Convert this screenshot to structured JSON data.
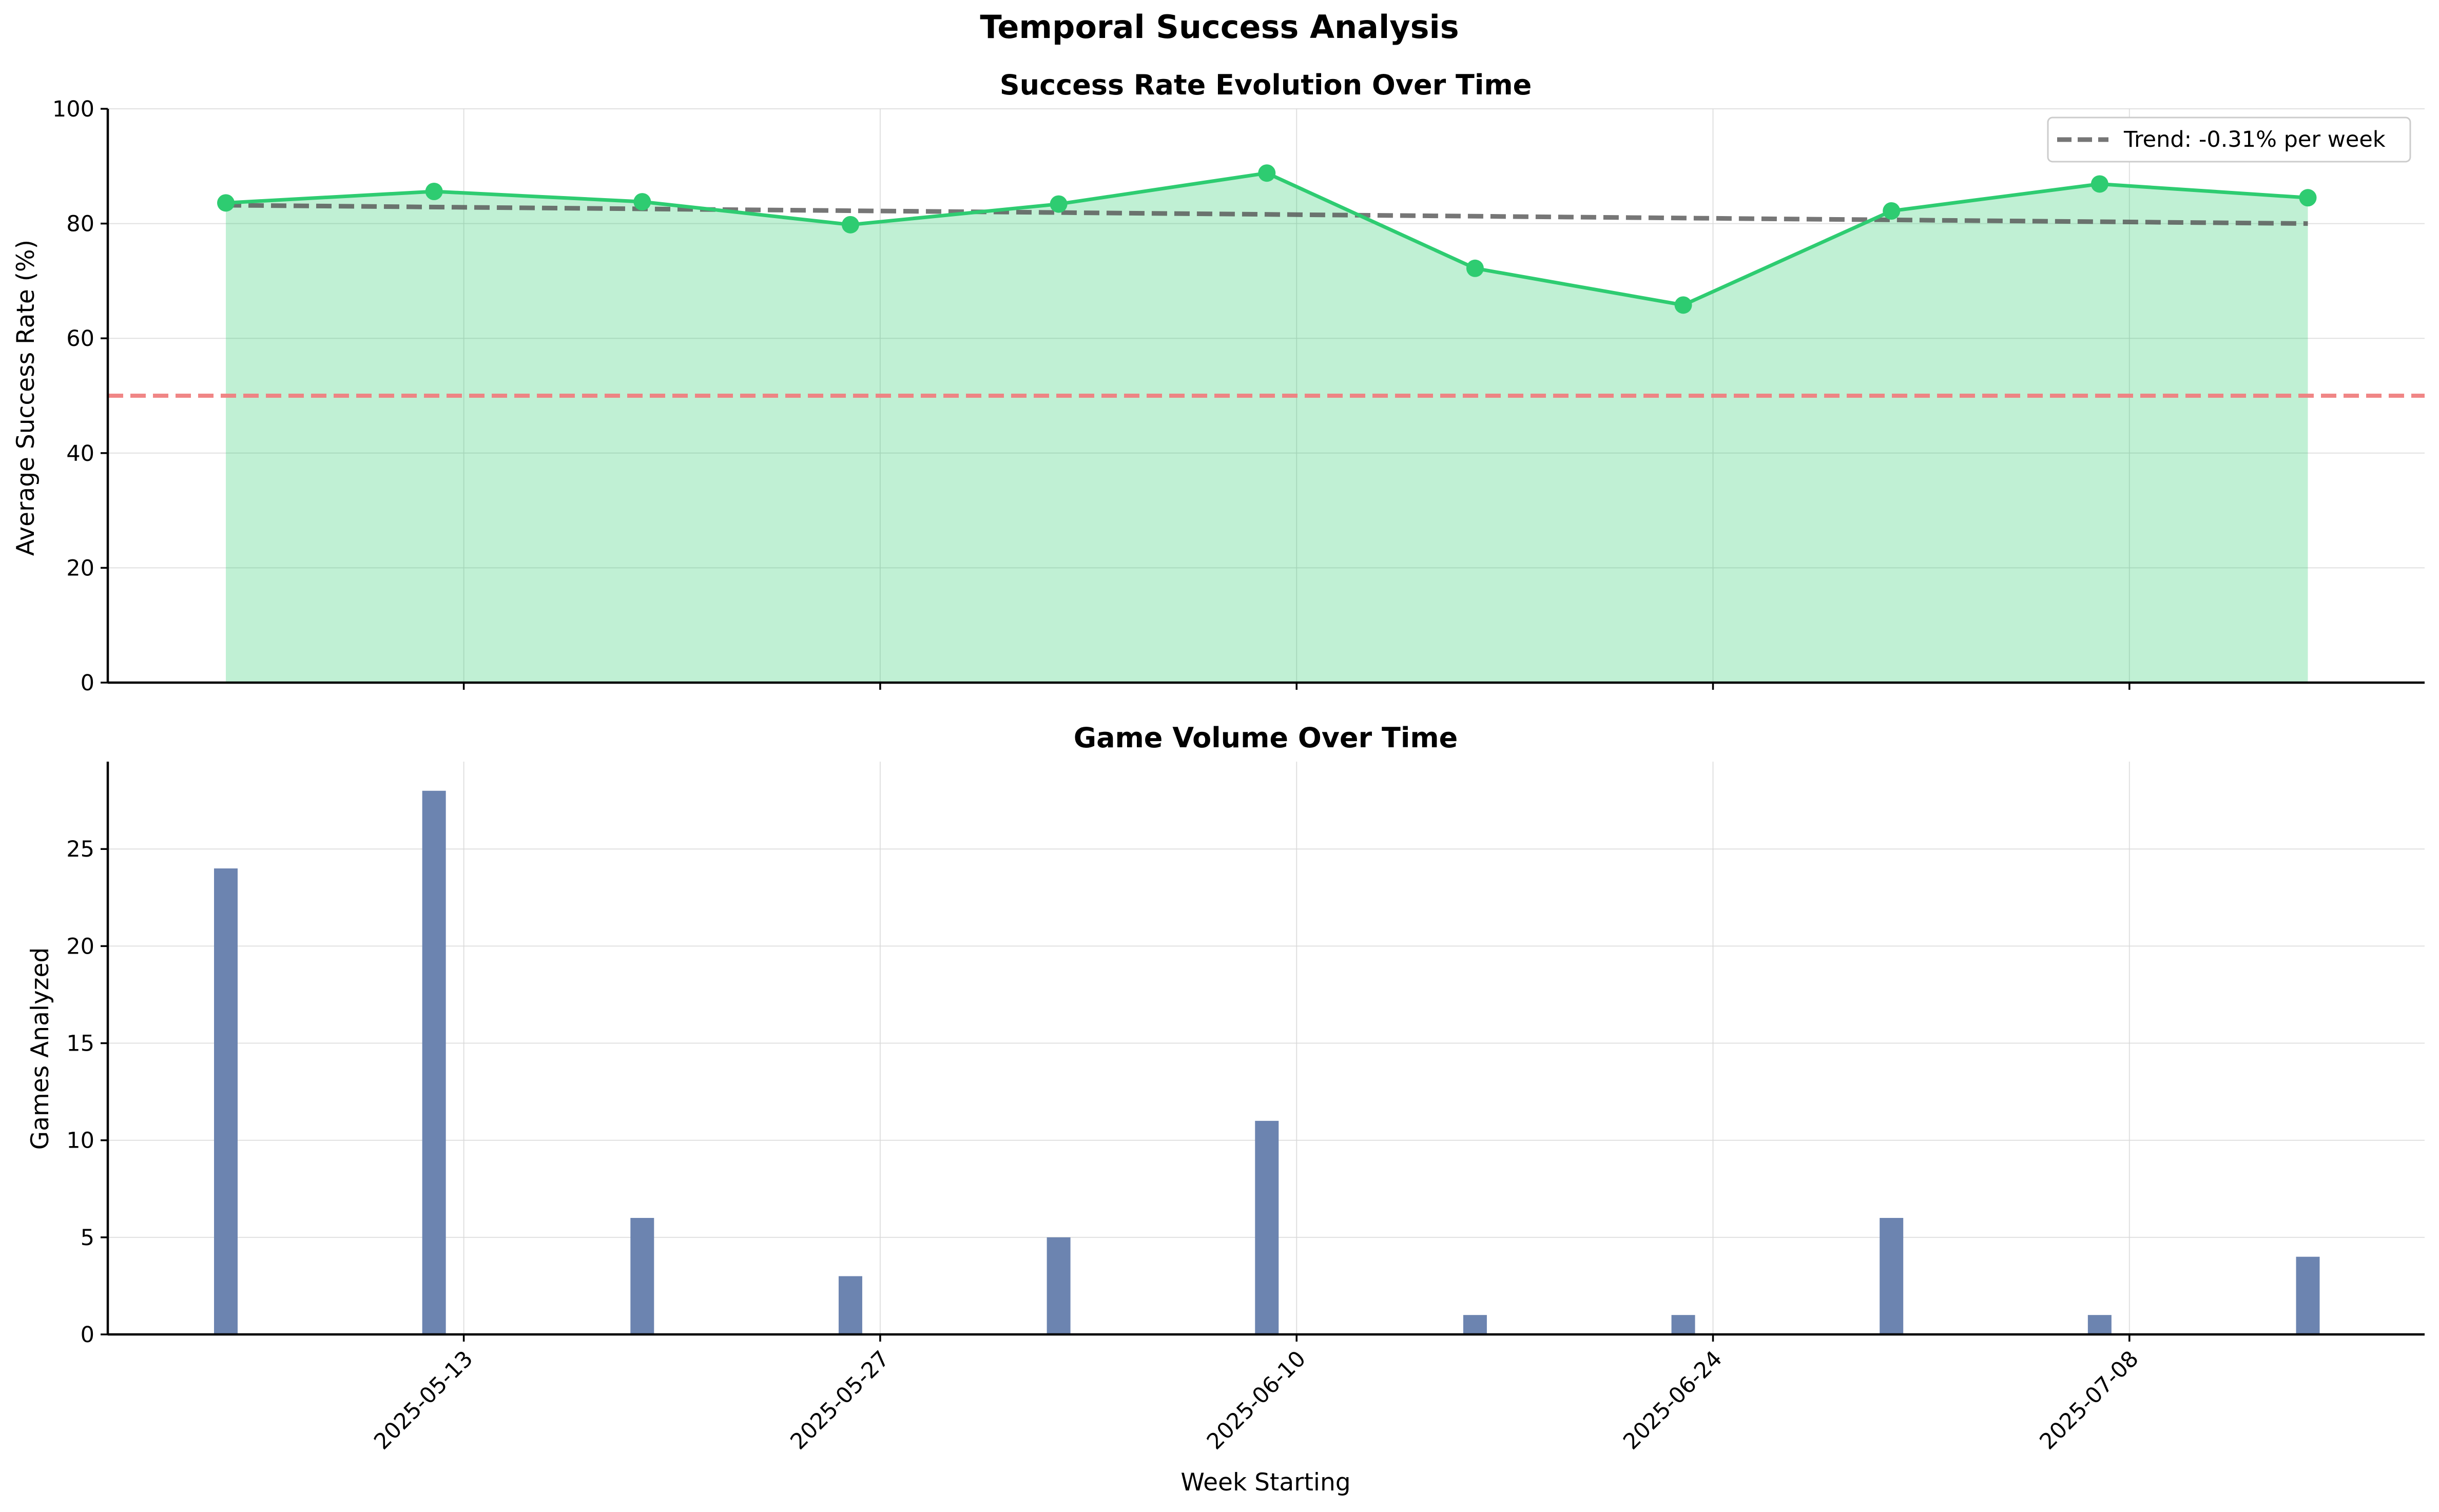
{
  "suptitle": "Temporal Success Analysis",
  "chart_data": [
    {
      "type": "line",
      "title": "Success Rate Evolution Over Time",
      "xlabel": "",
      "ylabel": "Average Success Rate (%)",
      "ylim": [
        0,
        100
      ],
      "yticks": [
        0,
        20,
        40,
        60,
        80,
        100
      ],
      "x": [
        "2025-05-05",
        "2025-05-12",
        "2025-05-19",
        "2025-05-26",
        "2025-06-02",
        "2025-06-09",
        "2025-06-16",
        "2025-06-23",
        "2025-06-30",
        "2025-07-07",
        "2025-07-14"
      ],
      "series": [
        {
          "name": "",
          "color": "#2ecc71",
          "fill": true,
          "values": [
            83.6,
            85.6,
            83.8,
            79.8,
            83.4,
            88.8,
            72.2,
            65.8,
            82.2,
            86.9,
            84.5
          ]
        }
      ],
      "trend": {
        "label": "Trend: -0.31% per week",
        "start": 83.2,
        "end": 80.0,
        "color": "#555555"
      },
      "reference_line": {
        "y": 50,
        "color": "#f08080"
      },
      "grid": true,
      "legend": "top-right"
    },
    {
      "type": "bar",
      "title": "Game Volume Over Time",
      "xlabel": "Week Starting",
      "ylabel": "Games Analyzed",
      "ylim": [
        0,
        29.5
      ],
      "yticks": [
        0,
        5,
        10,
        15,
        20,
        25
      ],
      "x": [
        "2025-05-05",
        "2025-05-12",
        "2025-05-19",
        "2025-05-26",
        "2025-06-02",
        "2025-06-09",
        "2025-06-16",
        "2025-06-23",
        "2025-06-30",
        "2025-07-07",
        "2025-07-14"
      ],
      "values": [
        24,
        28,
        6,
        3,
        5,
        11,
        1,
        1,
        6,
        1,
        4
      ],
      "color": "#6c84b0",
      "xtick_labels": [
        "2025-05-13",
        "2025-05-27",
        "2025-06-10",
        "2025-06-24",
        "2025-07-08"
      ],
      "grid": true
    }
  ]
}
